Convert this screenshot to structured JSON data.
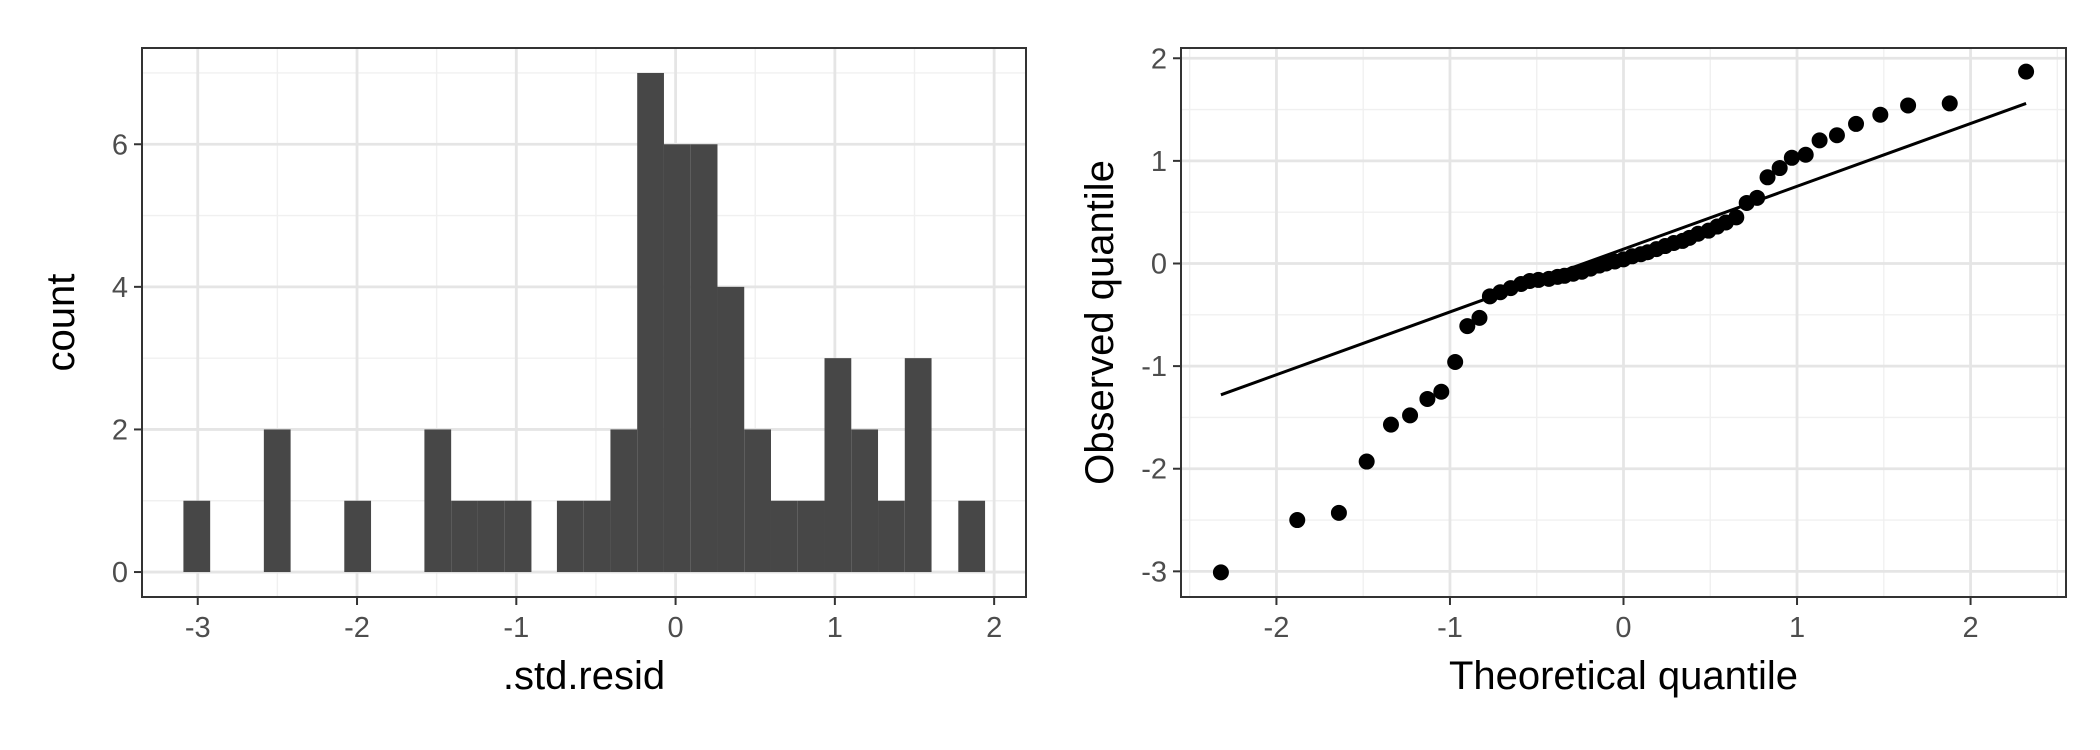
{
  "chart_data": [
    {
      "type": "bar",
      "subtype": "histogram",
      "xlabel": ".std.resid",
      "ylabel": "count",
      "xlim": [
        -3.35,
        2.2
      ],
      "ylim": [
        -0.35,
        7.35
      ],
      "x_ticks": [
        -3,
        -2,
        -1,
        0,
        1,
        2
      ],
      "x_tick_labels": [
        "-3",
        "-2",
        "-1",
        "0",
        "1",
        "2"
      ],
      "y_ticks": [
        0,
        2,
        4,
        6
      ],
      "y_tick_labels": [
        "0",
        "2",
        "4",
        "6"
      ],
      "bin_width": 0.168,
      "bins": [
        {
          "x0": -3.09,
          "count": 1
        },
        {
          "x0": -2.585,
          "count": 2
        },
        {
          "x0": -2.08,
          "count": 1
        },
        {
          "x0": -1.577,
          "count": 2
        },
        {
          "x0": -1.409,
          "count": 1
        },
        {
          "x0": -1.241,
          "count": 1
        },
        {
          "x0": -1.073,
          "count": 1
        },
        {
          "x0": -0.745,
          "count": 1
        },
        {
          "x0": -0.577,
          "count": 1
        },
        {
          "x0": -0.409,
          "count": 2
        },
        {
          "x0": -0.241,
          "count": 7
        },
        {
          "x0": -0.073,
          "count": 6
        },
        {
          "x0": 0.095,
          "count": 6
        },
        {
          "x0": 0.263,
          "count": 4
        },
        {
          "x0": 0.431,
          "count": 2
        },
        {
          "x0": 0.599,
          "count": 1
        },
        {
          "x0": 0.767,
          "count": 1
        },
        {
          "x0": 0.935,
          "count": 3
        },
        {
          "x0": 1.103,
          "count": 2
        },
        {
          "x0": 1.271,
          "count": 1
        },
        {
          "x0": 1.439,
          "count": 3
        },
        {
          "x0": 1.775,
          "count": 1
        }
      ],
      "bar_color": "#474747",
      "grid": true,
      "theme": "bw"
    },
    {
      "type": "scatter",
      "xlabel": "Theoretical quantile",
      "ylabel": "Observed quantile",
      "xlim": [
        -2.55,
        2.55
      ],
      "ylim": [
        -3.25,
        2.1
      ],
      "x_ticks": [
        -2,
        -1,
        0,
        1,
        2
      ],
      "x_tick_labels": [
        "-2",
        "-1",
        "0",
        "1",
        "2"
      ],
      "y_ticks": [
        -3,
        -2,
        -1,
        0,
        1,
        2
      ],
      "y_tick_labels": [
        "-3",
        "-2",
        "-1",
        "0",
        "1",
        "2"
      ],
      "reference_line": {
        "x": [
          -2.32,
          2.32
        ],
        "y": [
          -1.28,
          1.56
        ]
      },
      "points": [
        [
          -2.32,
          -3.01
        ],
        [
          -1.88,
          -2.5
        ],
        [
          -1.64,
          -2.43
        ],
        [
          -1.48,
          -1.93
        ],
        [
          -1.34,
          -1.57
        ],
        [
          -1.23,
          -1.48
        ],
        [
          -1.13,
          -1.32
        ],
        [
          -1.05,
          -1.25
        ],
        [
          -0.97,
          -0.96
        ],
        [
          -0.9,
          -0.61
        ],
        [
          -0.83,
          -0.53
        ],
        [
          -0.77,
          -0.32
        ],
        [
          -0.71,
          -0.28
        ],
        [
          -0.65,
          -0.24
        ],
        [
          -0.59,
          -0.2
        ],
        [
          -0.54,
          -0.17
        ],
        [
          -0.49,
          -0.16
        ],
        [
          -0.43,
          -0.15
        ],
        [
          -0.38,
          -0.13
        ],
        [
          -0.34,
          -0.12
        ],
        [
          -0.29,
          -0.1
        ],
        [
          -0.24,
          -0.08
        ],
        [
          -0.19,
          -0.05
        ],
        [
          -0.14,
          -0.02
        ],
        [
          -0.1,
          0.0
        ],
        [
          -0.05,
          0.02
        ],
        [
          0.0,
          0.04
        ],
        [
          0.05,
          0.07
        ],
        [
          0.1,
          0.09
        ],
        [
          0.14,
          0.11
        ],
        [
          0.19,
          0.14
        ],
        [
          0.24,
          0.17
        ],
        [
          0.29,
          0.2
        ],
        [
          0.34,
          0.22
        ],
        [
          0.38,
          0.25
        ],
        [
          0.43,
          0.29
        ],
        [
          0.49,
          0.32
        ],
        [
          0.54,
          0.36
        ],
        [
          0.59,
          0.4
        ],
        [
          0.65,
          0.45
        ],
        [
          0.71,
          0.59
        ],
        [
          0.77,
          0.64
        ],
        [
          0.83,
          0.84
        ],
        [
          0.9,
          0.93
        ],
        [
          0.97,
          1.03
        ],
        [
          1.05,
          1.06
        ],
        [
          1.13,
          1.2
        ],
        [
          1.23,
          1.25
        ],
        [
          1.34,
          1.36
        ],
        [
          1.48,
          1.45
        ],
        [
          1.64,
          1.54
        ],
        [
          1.88,
          1.56
        ],
        [
          2.32,
          1.87
        ]
      ],
      "point_color": "#000000",
      "grid": true,
      "theme": "bw"
    }
  ]
}
